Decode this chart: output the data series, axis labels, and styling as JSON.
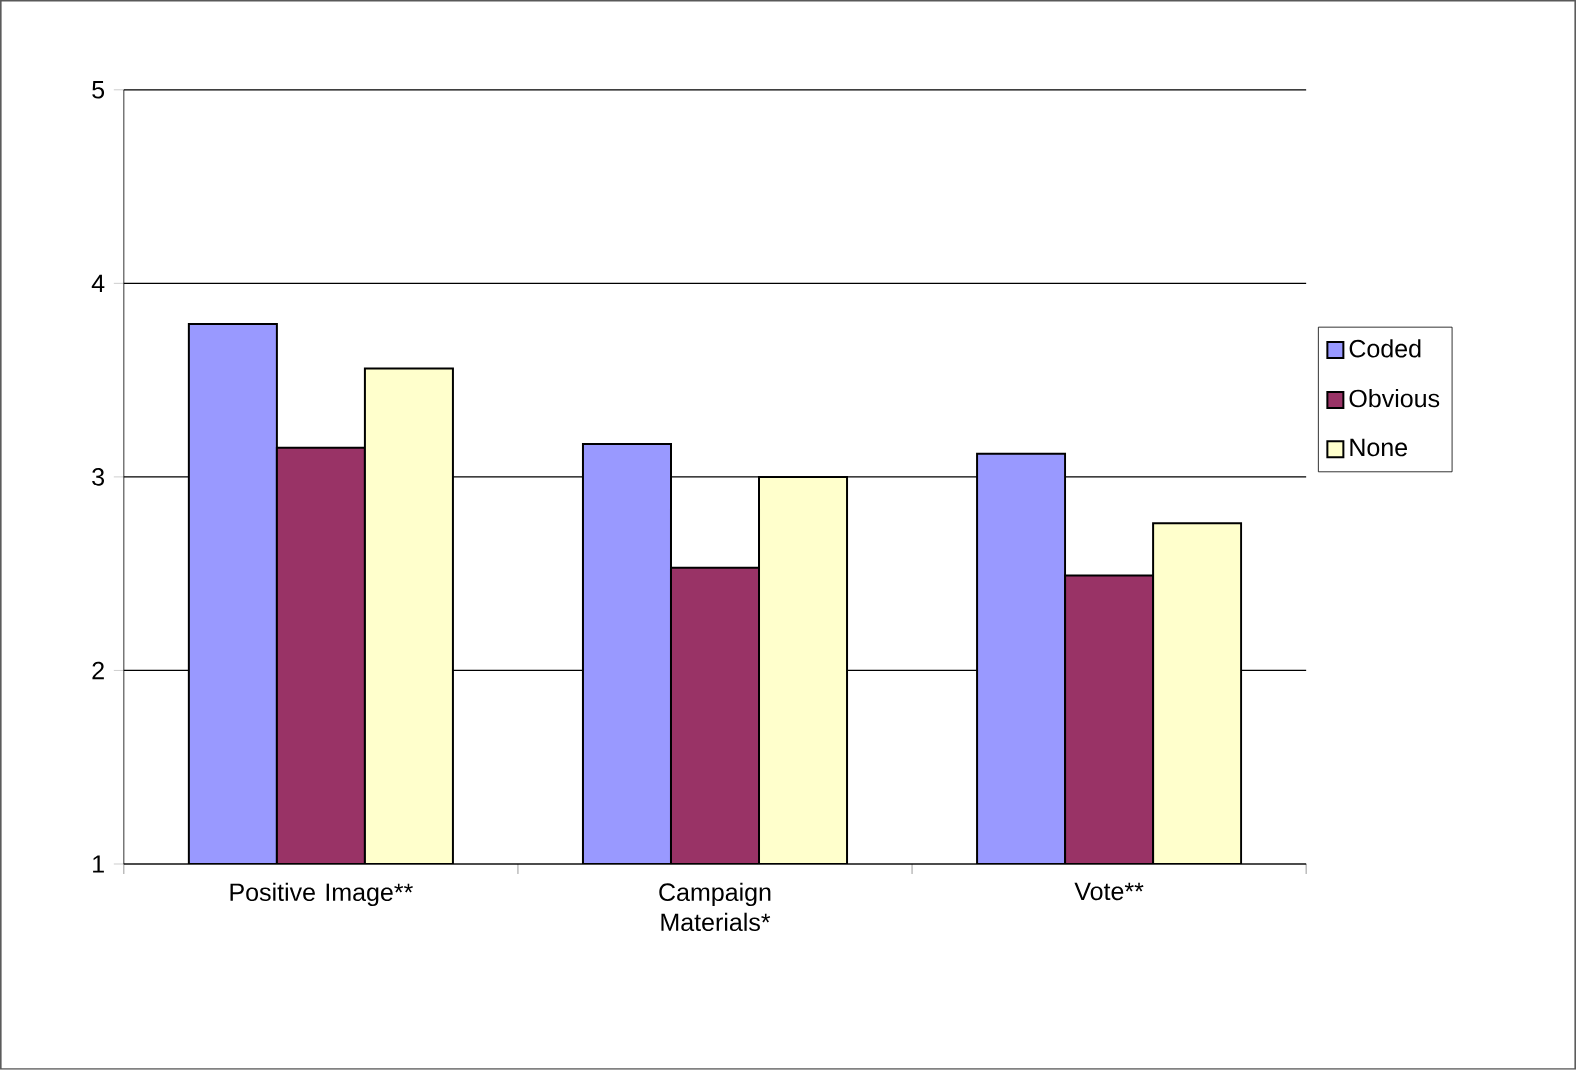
{
  "chart_data": {
    "type": "bar",
    "categories": [
      "Positive Image**",
      "Campaign Materials*",
      "Vote**"
    ],
    "series": [
      {
        "name": "Coded",
        "color": "#9999ff",
        "values": [
          3.79,
          3.17,
          3.12
        ]
      },
      {
        "name": "Obvious",
        "color": "#993366",
        "values": [
          3.15,
          2.53,
          2.49
        ]
      },
      {
        "name": "None",
        "color": "#ffffcc",
        "values": [
          3.56,
          3.0,
          2.76
        ]
      }
    ],
    "ylim": [
      1,
      5
    ],
    "yticks": [
      1,
      2,
      3,
      4,
      5
    ],
    "grid": "y",
    "legend": "right"
  }
}
